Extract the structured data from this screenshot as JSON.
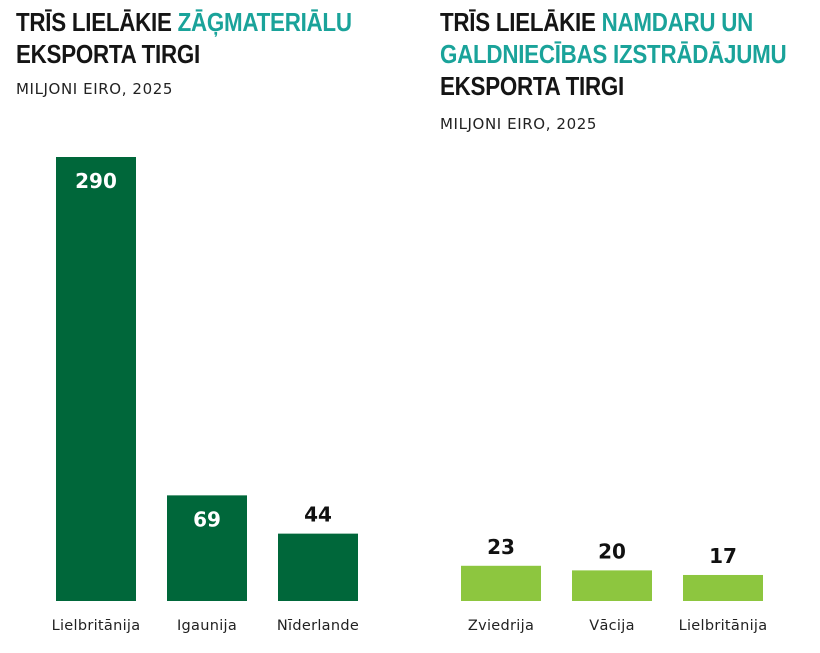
{
  "chart_data": [
    {
      "type": "bar",
      "title_parts": [
        {
          "text": "TRĪS LIELĀKIE ",
          "accent": false
        },
        {
          "text": "ZĀĢMATERIĀLU",
          "accent": true
        },
        {
          "text": "EKSPORTA TIRGI",
          "accent": false
        }
      ],
      "subtitle": "MILJONI EIRO, 2025",
      "categories": [
        "Lielbritānija",
        "Igaunija",
        "Nīderlande"
      ],
      "values": [
        290,
        69,
        44
      ],
      "value_labels": [
        "290",
        "69",
        "44"
      ],
      "color": "#00673a",
      "ylim": [
        0,
        290
      ]
    },
    {
      "type": "bar",
      "title_parts": [
        {
          "text": "TRĪS LIELĀKIE ",
          "accent": false
        },
        {
          "text": "NAMDARU UN",
          "accent": true
        },
        {
          "text": "GALDNIECĪBAS IZSTRĀDĀJUMU",
          "accent": true
        },
        {
          "text": "EKSPORTA TIRGI",
          "accent": false
        }
      ],
      "subtitle": "MILJONI EIRO, 2025",
      "categories": [
        "Zviedrija",
        "Vācija",
        "Lielbritānija"
      ],
      "values": [
        23,
        20,
        17
      ],
      "value_labels": [
        "23",
        "20",
        "17"
      ],
      "color": "#8dc63f",
      "ylim": [
        0,
        290
      ]
    }
  ]
}
